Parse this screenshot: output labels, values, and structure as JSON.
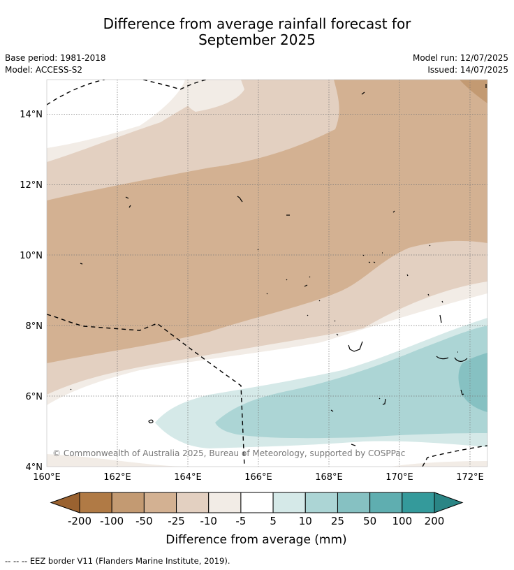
{
  "title": {
    "line1": "Difference from average rainfall forecast for",
    "line2": "September 2025"
  },
  "meta": {
    "base_period": "Base period: 1981-2018",
    "model": "Model: ACCESS-S2",
    "model_run": "Model run: 12/07/2025",
    "issued": "Issued: 14/07/2025"
  },
  "map": {
    "lat_labels": [
      "14°N",
      "12°N",
      "10°N",
      "8°N",
      "6°N",
      "4°N"
    ],
    "lon_labels": [
      "160°E",
      "162°E",
      "164°E",
      "166°E",
      "168°E",
      "170°E",
      "172°E"
    ],
    "lon_range": [
      160,
      172.5
    ],
    "lat_range": [
      4,
      15
    ],
    "copyright": "© Commonwealth of Australia 2025, Bureau of Meteorology, supported by COSPPac"
  },
  "colorbar": {
    "title": "Difference from average (mm)",
    "tick_labels": [
      "-200",
      "-100",
      "-50",
      "-25",
      "-10",
      "-5",
      "5",
      "10",
      "25",
      "50",
      "100",
      "200"
    ],
    "colors": [
      "#9a6230",
      "#b07a45",
      "#c39a72",
      "#d3b192",
      "#e3d0c1",
      "#f2ece6",
      "#ffffff",
      "#d5e9e8",
      "#acd5d5",
      "#86c1c2",
      "#5faeb0",
      "#349a9b",
      "#2a8585"
    ]
  },
  "legend_note": "--  --  -- EEZ border V11 (Flanders Marine Institute, 2019)."
}
